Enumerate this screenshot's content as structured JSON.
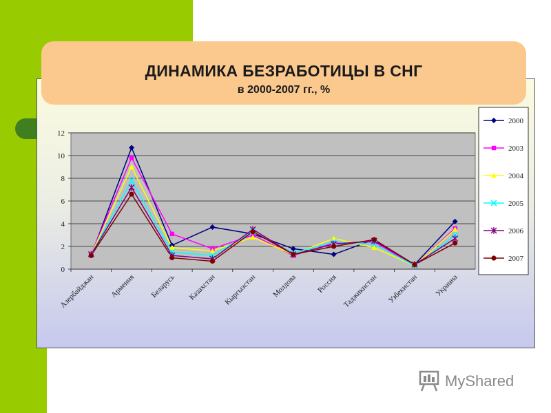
{
  "slide": {
    "title": "ДИНАМИКА БЕЗРАБОТИЦЫ В СНГ",
    "subtitle": "в 2000-2007 гг., %",
    "watermark": "MyShared",
    "colors": {
      "side_green": "#99cc00",
      "title_bg": "#fbc98e",
      "plot_bg": "#c0c0c0"
    }
  },
  "chart_data": {
    "type": "line",
    "title": "",
    "xlabel": "",
    "ylabel": "",
    "ylim": [
      0,
      12
    ],
    "yticks": [
      0,
      2,
      4,
      6,
      8,
      10,
      12
    ],
    "grid": true,
    "legend_position": "right",
    "categories": [
      "Азербайджан",
      "Армения",
      "Беларусь",
      "Казахстан",
      "Кыргызстан",
      "Молдова",
      "Россия",
      "Таджикистан",
      "Узбекистан",
      "Украина"
    ],
    "series": [
      {
        "name": "2000",
        "color": "#000080",
        "marker": "diamond",
        "values": [
          1.2,
          10.7,
          2.1,
          3.7,
          3.1,
          1.8,
          1.3,
          2.6,
          0.4,
          4.2
        ]
      },
      {
        "name": "2003",
        "color": "#ff00ff",
        "marker": "square",
        "values": [
          1.3,
          9.8,
          3.1,
          1.8,
          3.0,
          1.2,
          2.3,
          2.4,
          0.3,
          3.6
        ]
      },
      {
        "name": "2004",
        "color": "#ffff00",
        "marker": "triangle",
        "values": [
          1.3,
          9.0,
          1.9,
          1.6,
          2.8,
          1.3,
          2.7,
          1.9,
          0.3,
          3.5
        ]
      },
      {
        "name": "2005",
        "color": "#00ffff",
        "marker": "x",
        "values": [
          1.3,
          7.8,
          1.5,
          1.2,
          3.3,
          1.4,
          2.4,
          2.2,
          0.3,
          3.0
        ]
      },
      {
        "name": "2006",
        "color": "#800080",
        "marker": "star",
        "values": [
          1.3,
          7.2,
          1.2,
          0.9,
          3.5,
          1.3,
          2.2,
          2.5,
          0.4,
          2.7
        ]
      },
      {
        "name": "2007",
        "color": "#800000",
        "marker": "circle",
        "values": [
          1.2,
          6.6,
          1.0,
          0.7,
          3.3,
          1.3,
          2.0,
          2.6,
          0.4,
          2.3
        ]
      }
    ]
  }
}
